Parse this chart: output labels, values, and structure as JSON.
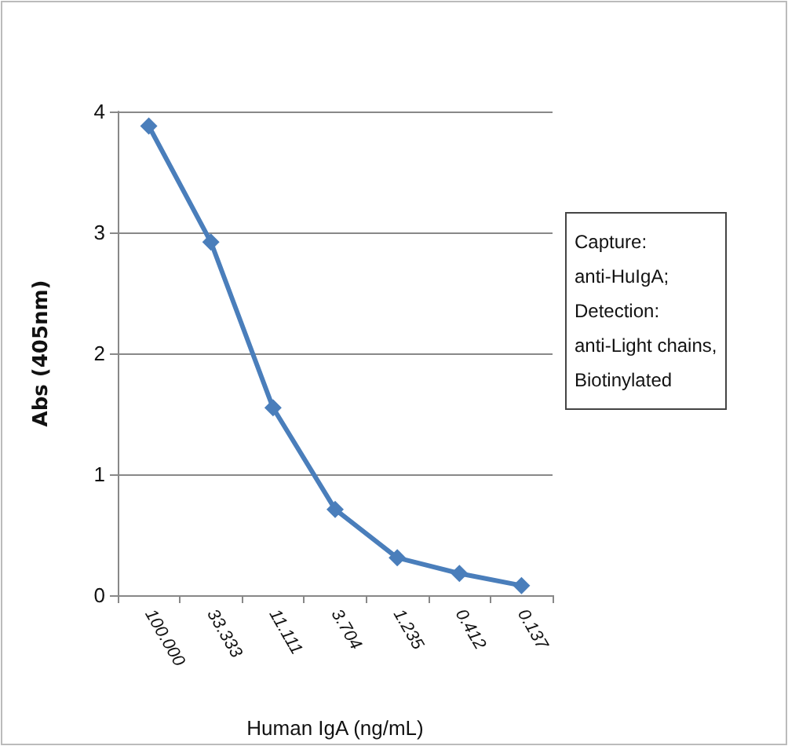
{
  "chart_data": {
    "type": "line",
    "categories": [
      "100.000",
      "33.333",
      "11.111",
      "3.704",
      "1.235",
      "0.412",
      "0.137"
    ],
    "series": [
      {
        "color": "#4a7ebb",
        "values": [
          3.88,
          2.92,
          1.55,
          0.71,
          0.31,
          0.18,
          0.08
        ]
      }
    ],
    "xlabel": "Human IgA (ng/mL)",
    "ylabel": "Abs (405nm)",
    "ylim": [
      0,
      4
    ],
    "yticks": [
      0,
      1,
      2,
      3,
      4
    ],
    "grid": "y",
    "marker": "diamond",
    "line_style": "solid",
    "annotations": [
      "Capture:\nanti-HuIgA;\nDetection:\nanti-Light chains,\nBiotinylated"
    ]
  }
}
